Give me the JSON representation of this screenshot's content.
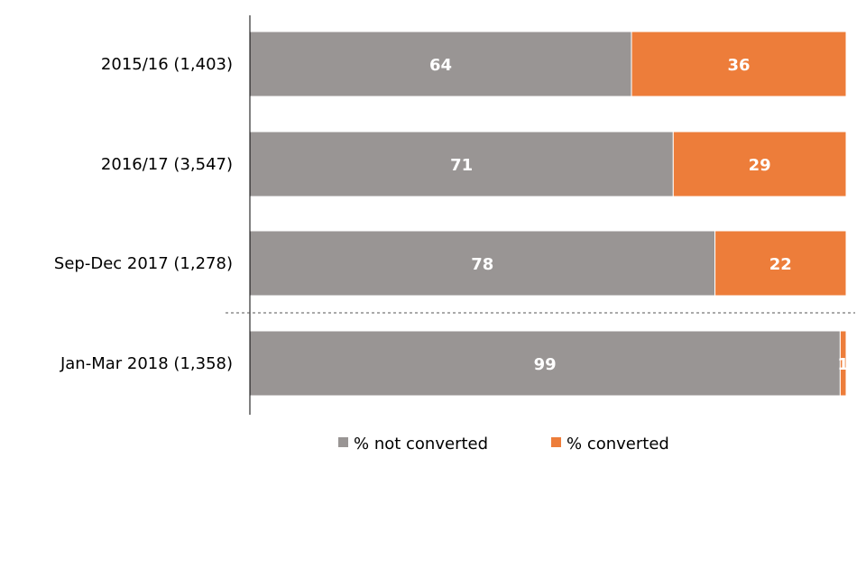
{
  "chart_data": {
    "type": "bar",
    "orientation": "horizontal",
    "stacked": true,
    "categories": [
      "2015/16 (1,403)",
      "2016/17 (3,547)",
      "Sep-Dec 2017 (1,278)",
      "Jan-Mar 2018 (1,358)"
    ],
    "series": [
      {
        "name": "% not converted",
        "values": [
          64,
          71,
          78,
          99
        ],
        "color": "#999594"
      },
      {
        "name": "% converted",
        "values": [
          36,
          29,
          22,
          1
        ],
        "color": "#ed7d3a"
      }
    ],
    "xlim": [
      0,
      100
    ],
    "grid": false,
    "legend": "bottom",
    "separator_line": "dashed line between Sep-Dec 2017 and Jan-Mar 2018"
  }
}
